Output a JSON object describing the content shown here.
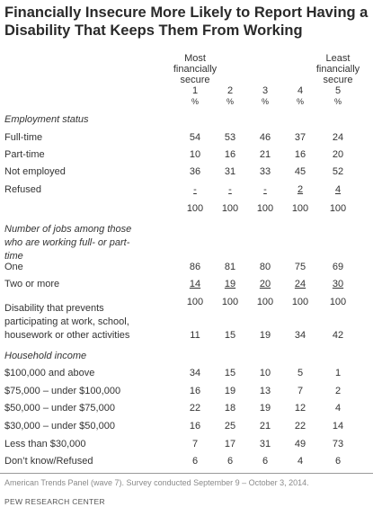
{
  "title_line1": "Financially Insecure More Likely to Report Having a",
  "title_line2": "Disability That Keeps Them From Working",
  "chart_data": {
    "type": "table",
    "columns": [
      {
        "label": "Most financially secure",
        "number": "1",
        "unit": "%"
      },
      {
        "label": "",
        "number": "2",
        "unit": "%"
      },
      {
        "label": "",
        "number": "3",
        "unit": "%"
      },
      {
        "label": "",
        "number": "4",
        "unit": "%"
      },
      {
        "label": "Least financially secure",
        "number": "5",
        "unit": "%"
      }
    ],
    "sections": [
      {
        "heading": "Employment status",
        "rows": [
          {
            "label": "Full-time",
            "values": [
              "54",
              "53",
              "46",
              "37",
              "24"
            ]
          },
          {
            "label": "Part-time",
            "values": [
              "10",
              "16",
              "21",
              "16",
              "20"
            ]
          },
          {
            "label": "Not employed",
            "values": [
              "36",
              "31",
              "33",
              "45",
              "52"
            ]
          },
          {
            "label": "Refused",
            "values": [
              "-",
              "-",
              "-",
              "2",
              "4"
            ],
            "underline": true
          },
          {
            "label": "",
            "values": [
              "100",
              "100",
              "100",
              "100",
              "100"
            ]
          }
        ]
      },
      {
        "heading": "Number of jobs among those who are working full- or part-time",
        "rows": [
          {
            "label": "One",
            "values": [
              "86",
              "81",
              "80",
              "75",
              "69"
            ]
          },
          {
            "label": "Two or more",
            "values": [
              "14",
              "19",
              "20",
              "24",
              "30"
            ],
            "underline": true
          },
          {
            "label": "",
            "values": [
              "100",
              "100",
              "100",
              "100",
              "100"
            ]
          }
        ]
      },
      {
        "heading": "",
        "rows": [
          {
            "label": "Disability that prevents participating at work, school, housework or other activities",
            "values": [
              "11",
              "15",
              "19",
              "34",
              "42"
            ]
          }
        ]
      },
      {
        "heading": "Household income",
        "rows": [
          {
            "label": "$100,000 and above",
            "values": [
              "34",
              "15",
              "10",
              "5",
              "1"
            ]
          },
          {
            "label": "$75,000 – under $100,000",
            "values": [
              "16",
              "19",
              "13",
              "7",
              "2"
            ]
          },
          {
            "label": "$50,000 – under $75,000",
            "values": [
              "22",
              "18",
              "19",
              "12",
              "4"
            ]
          },
          {
            "label": "$30,000 – under $50,000",
            "values": [
              "16",
              "25",
              "21",
              "22",
              "14"
            ]
          },
          {
            "label": "Less than $30,000",
            "values": [
              "7",
              "17",
              "31",
              "49",
              "73"
            ]
          },
          {
            "label": "Don’t know/Refused",
            "values": [
              "6",
              "6",
              "6",
              "4",
              "6"
            ]
          }
        ]
      }
    ]
  },
  "header": {
    "col1_line1": "Most",
    "col1_line2": "financially",
    "col1_line3": "secure",
    "col5_line1": "Least",
    "col5_line2": "financially",
    "col5_line3": "secure"
  },
  "section_labels": {
    "employment": "Employment status",
    "jobs_line1": "Number of jobs among those",
    "jobs_line2": "who are working full- or part-",
    "jobs_line3": "time",
    "disability_line1": "Disability that prevents",
    "disability_line2": "participating at work, school,",
    "disability_line3": "housework or other activities",
    "income": "Household income"
  },
  "footer": {
    "note": "American Trends Panel (wave 7). Survey conducted September 9 – October 3, 2014.",
    "brand": "PEW RESEARCH CENTER"
  },
  "colors": {
    "divider": "#9a9a9a",
    "text": "#333333",
    "title": "#2a2a2a",
    "footnote": "#8a8a8a"
  }
}
